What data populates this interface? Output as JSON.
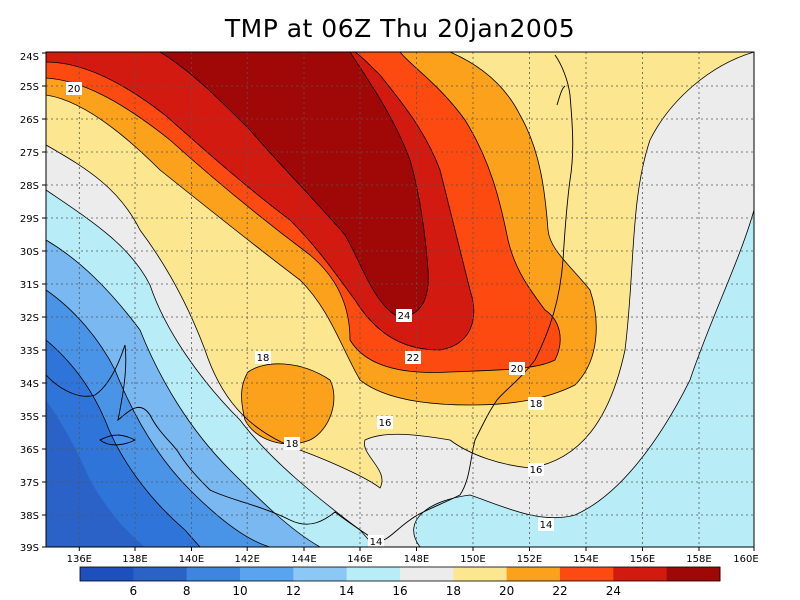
{
  "title": "TMP at 06Z Thu 20jan2005",
  "map": {
    "lat_ticks": [
      "24S",
      "25S",
      "26S",
      "27S",
      "28S",
      "29S",
      "30S",
      "31S",
      "32S",
      "33S",
      "34S",
      "35S",
      "36S",
      "37S",
      "38S",
      "39S"
    ],
    "lon_ticks": [
      "136E",
      "138E",
      "140E",
      "142E",
      "144E",
      "146E",
      "148E",
      "150E",
      "152E",
      "154E",
      "156E",
      "158E",
      "160E"
    ],
    "colors": {
      "lt6": "#2a62c8",
      "6_8": "#2f74d9",
      "8_10": "#4a94e8",
      "10_12": "#7ab8f2",
      "12_14": "#b8ecf7",
      "14_16": "#ececec",
      "16_18": "#fce68f",
      "18_20": "#fca11c",
      "20_22": "#fc4a10",
      "22_24": "#d21a10",
      "gt24": "#a00808"
    },
    "contour_labels": [
      {
        "text": "20"
      },
      {
        "text": "24"
      },
      {
        "text": "22"
      },
      {
        "text": "20"
      },
      {
        "text": "18"
      },
      {
        "text": "18"
      },
      {
        "text": "18"
      },
      {
        "text": "16"
      },
      {
        "text": "16"
      },
      {
        "text": "14"
      },
      {
        "text": "14"
      }
    ]
  },
  "colorbar": {
    "labels": [
      "6",
      "8",
      "10",
      "12",
      "14",
      "16",
      "18",
      "20",
      "22",
      "24"
    ],
    "colors": [
      "#1e4fbf",
      "#2a62c8",
      "#3d85e0",
      "#5aa3ee",
      "#8cc8f5",
      "#b8ecf7",
      "#ececec",
      "#fce68f",
      "#fca11c",
      "#fc4a10",
      "#d21a10",
      "#a00808"
    ]
  }
}
